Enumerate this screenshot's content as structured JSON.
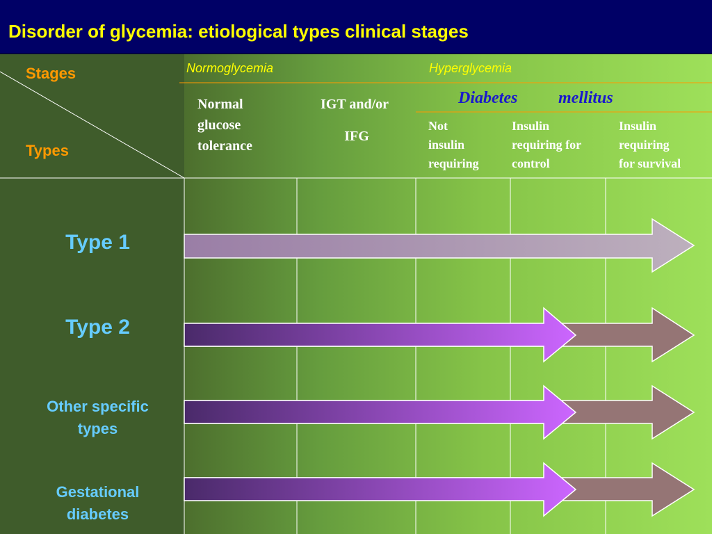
{
  "title": "Disorder of glycemia: etiological types clinical stages",
  "header": {
    "stages_label": "Stages",
    "types_label": "Types",
    "normoglycemia": "Normoglycemia",
    "hyperglycemia": "Hyperglycemia",
    "diabetes_word1": "Diabetes",
    "diabetes_word2": "mellitus",
    "col_normal": [
      "Normal",
      "glucose",
      "tolerance"
    ],
    "col_igt": [
      "IGT and/or",
      "IFG"
    ],
    "col_not_insulin": [
      "Not",
      "insulin",
      "requiring"
    ],
    "col_insulin_control": [
      "Insulin",
      "requiring for",
      "control"
    ],
    "col_insulin_survival": [
      "Insulin",
      "requiring",
      "for survival"
    ]
  },
  "types": [
    {
      "label": "Type 1"
    },
    {
      "label": "Type 2"
    },
    {
      "label_lines": [
        "Other specific",
        "types"
      ]
    },
    {
      "label_lines": [
        "Gestational",
        "diabetes"
      ]
    }
  ],
  "colors": {
    "title_bg": "#000066",
    "title_text": "#FFFF00",
    "stage_headings": "#FF9900",
    "phase_labels": "#FFFF00",
    "type_labels": "#66CCFF",
    "diabetes_mellitus": "#1a1acc",
    "arrow_type1": "#b8a7b8",
    "arrow_main_start": "#4a2a6a",
    "arrow_main_end": "#cc66ff",
    "arrow_tail": "#957575"
  }
}
